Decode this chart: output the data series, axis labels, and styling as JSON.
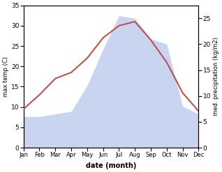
{
  "months": [
    "Jan",
    "Feb",
    "Mar",
    "Apr",
    "May",
    "Jun",
    "Jul",
    "Aug",
    "Sep",
    "Oct",
    "Nov",
    "Dec"
  ],
  "temp": [
    9.5,
    13.0,
    17.0,
    18.5,
    22.0,
    27.0,
    30.0,
    31.0,
    26.5,
    21.0,
    13.5,
    9.0
  ],
  "precip": [
    6.0,
    6.0,
    6.5,
    7.0,
    12.0,
    19.0,
    25.5,
    25.0,
    21.0,
    20.0,
    8.0,
    6.5
  ],
  "temp_color": "#c0504d",
  "precip_fill_color": "#c8d4f0",
  "ylabel_left": "max temp (C)",
  "ylabel_right": "med. precipitation (kg/m2)",
  "xlabel": "date (month)",
  "ylim_left": [
    0,
    35
  ],
  "ylim_right": [
    0,
    27.5
  ],
  "yticks_left": [
    0,
    5,
    10,
    15,
    20,
    25,
    30,
    35
  ],
  "yticks_right": [
    0,
    5,
    10,
    15,
    20,
    25
  ],
  "bg_color": "#ffffff"
}
